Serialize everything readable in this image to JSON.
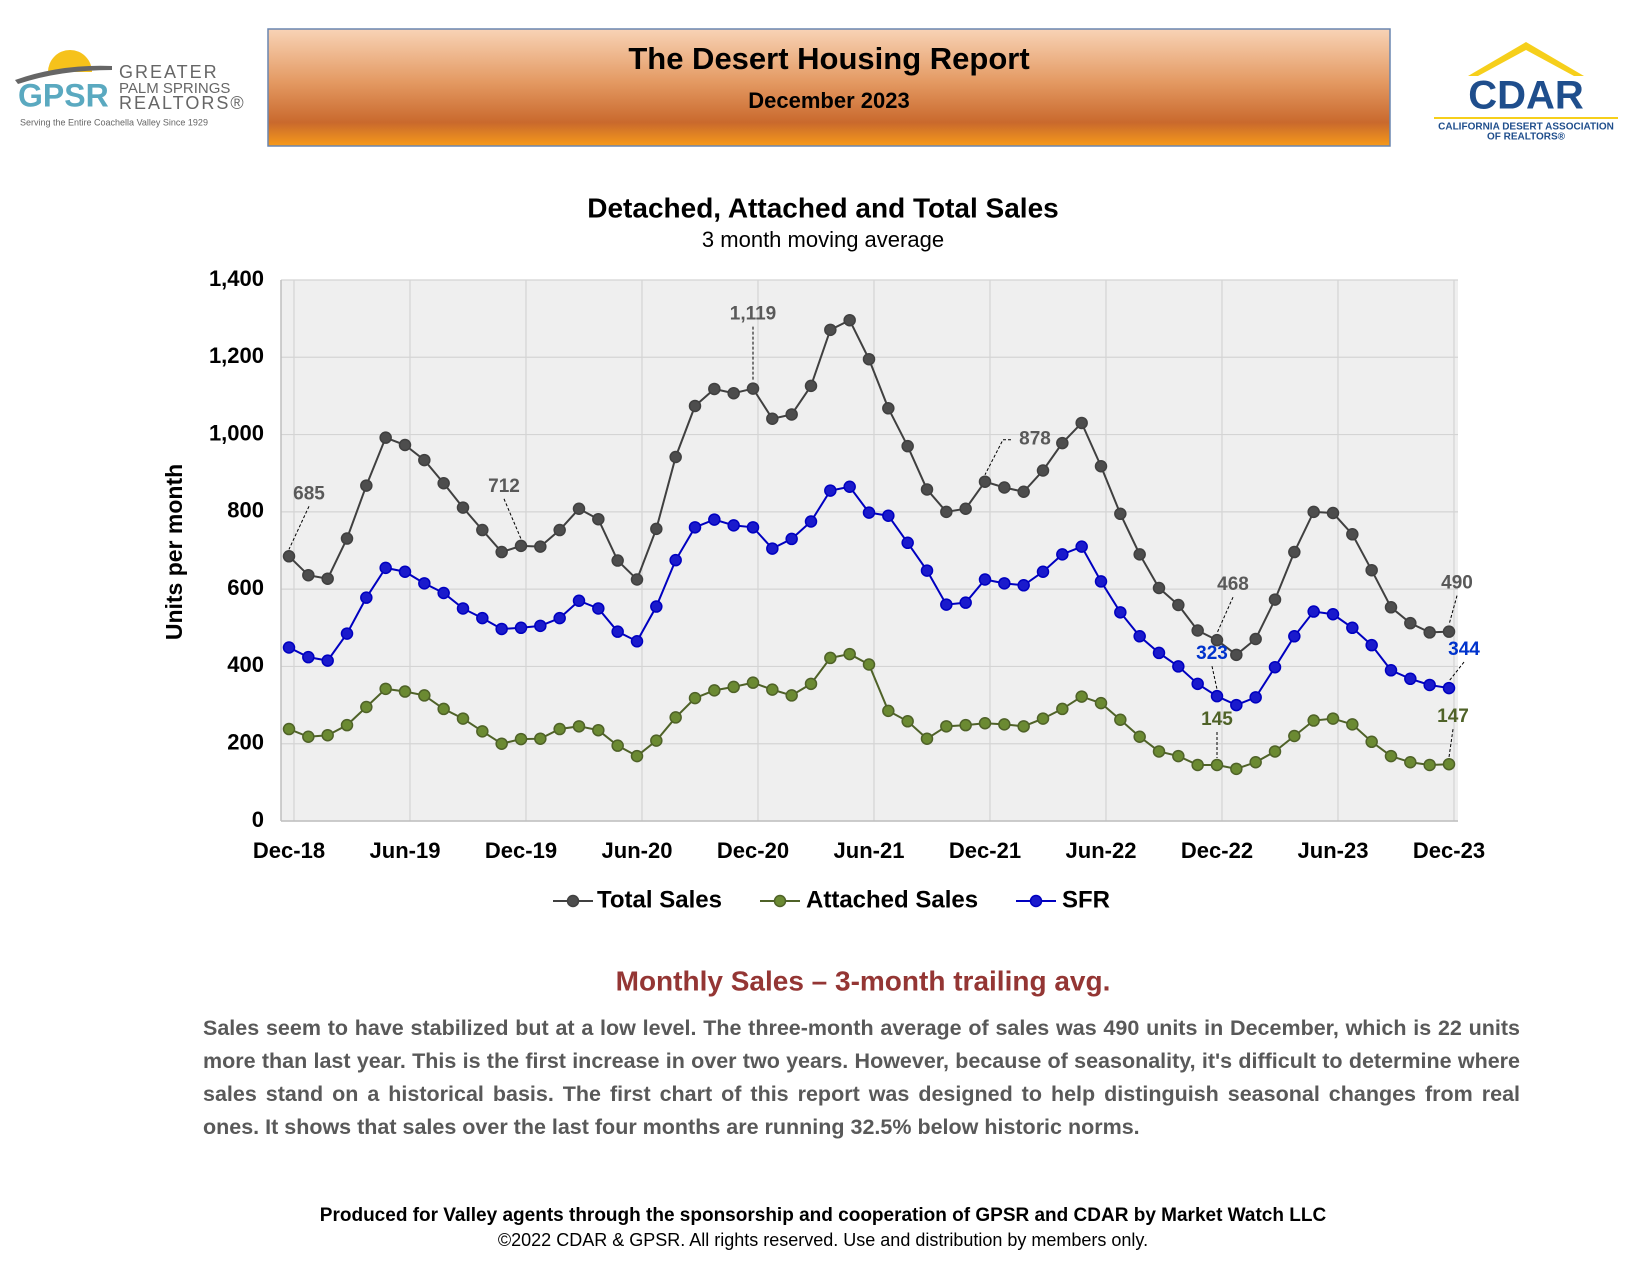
{
  "header": {
    "title": "The Desert Housing Report",
    "subtitle": "December 2023"
  },
  "logo_left": {
    "mark": "GPSR",
    "line1": "GREATER",
    "line2": "PALM SPRINGS",
    "line3": "REALTORS®",
    "tagline": "Serving the Entire Coachella Valley Since 1929"
  },
  "logo_right": {
    "mark": "CDAR",
    "line1": "CALIFORNIA DESERT ASSOCIATION",
    "line2": "OF REALTORS®"
  },
  "chart_data": {
    "type": "line",
    "title": "Detached, Attached and Total Sales",
    "subtitle": "3 month moving average",
    "y_label": "Units per month",
    "categories": [
      "Dec-18",
      null,
      null,
      null,
      null,
      null,
      "Jun-19",
      null,
      null,
      null,
      null,
      null,
      "Dec-19",
      null,
      null,
      null,
      null,
      null,
      "Jun-20",
      null,
      null,
      null,
      null,
      null,
      "Dec-20",
      null,
      null,
      null,
      null,
      null,
      "Jun-21",
      null,
      null,
      null,
      null,
      null,
      "Dec-21",
      null,
      null,
      null,
      null,
      null,
      "Jun-22",
      null,
      null,
      null,
      null,
      null,
      "Dec-22",
      null,
      null,
      null,
      null,
      null,
      "Jun-23",
      null,
      null,
      null,
      null,
      null,
      "Dec-23"
    ],
    "ylim": [
      0,
      1400
    ],
    "yticks": [
      0,
      200,
      400,
      600,
      800,
      {
        "value": 1000,
        "label": "1,000"
      },
      {
        "value": 1200,
        "label": "1,200"
      },
      {
        "value": 1400,
        "label": "1,400"
      }
    ],
    "grid": true,
    "series": [
      {
        "name": "Total Sales",
        "color": "#404040",
        "label_color": "#595959",
        "values": [
          685,
          636,
          627,
          731,
          868,
          992,
          973,
          934,
          874,
          811,
          753,
          696,
          712,
          710,
          753,
          808,
          781,
          674,
          625,
          756,
          942,
          1074,
          1118,
          1107,
          1119,
          1041,
          1052,
          1126,
          1271,
          1296,
          1195,
          1068,
          970,
          858,
          800,
          808,
          878,
          863,
          852,
          907,
          978,
          1030,
          918,
          795,
          690,
          603,
          559,
          493,
          468,
          430,
          471,
          573,
          696,
          800,
          797,
          742,
          649,
          553,
          512,
          488,
          490
        ],
        "value_labels": [
          "685",
          null,
          null,
          null,
          null,
          null,
          null,
          null,
          null,
          null,
          null,
          null,
          "712",
          null,
          null,
          null,
          null,
          null,
          null,
          null,
          null,
          null,
          null,
          null,
          "1,119",
          null,
          null,
          null,
          null,
          null,
          null,
          null,
          null,
          null,
          null,
          null,
          "878",
          null,
          null,
          null,
          null,
          null,
          null,
          null,
          null,
          null,
          null,
          null,
          "468",
          null,
          null,
          null,
          null,
          null,
          null,
          null,
          null,
          null,
          null,
          null,
          "490"
        ]
      },
      {
        "name": "Attached Sales",
        "color": "#4f6228",
        "label_color": "#4f6228",
        "values": [
          238,
          218,
          222,
          248,
          295,
          342,
          335,
          325,
          290,
          265,
          232,
          200,
          212,
          213,
          238,
          245,
          235,
          195,
          168,
          208,
          268,
          318,
          338,
          347,
          358,
          340,
          325,
          355,
          422,
          432,
          405,
          285,
          258,
          213,
          245,
          248,
          253,
          250,
          245,
          265,
          290,
          322,
          305,
          262,
          218,
          180,
          168,
          145,
          145,
          135,
          152,
          180,
          220,
          260,
          265,
          250,
          205,
          168,
          152,
          145,
          147
        ],
        "value_labels": [
          null,
          null,
          null,
          null,
          null,
          null,
          null,
          null,
          null,
          null,
          null,
          null,
          null,
          null,
          null,
          null,
          null,
          null,
          null,
          null,
          null,
          null,
          null,
          null,
          null,
          null,
          null,
          null,
          null,
          null,
          null,
          null,
          null,
          null,
          null,
          null,
          null,
          null,
          null,
          null,
          null,
          null,
          null,
          null,
          null,
          null,
          null,
          null,
          "145",
          null,
          null,
          null,
          null,
          null,
          null,
          null,
          null,
          null,
          null,
          null,
          "147"
        ]
      },
      {
        "name": "SFR",
        "color": "#0000c0",
        "label_color": "#0033cc",
        "values": [
          449,
          424,
          415,
          485,
          578,
          655,
          645,
          615,
          590,
          550,
          525,
          497,
          500,
          505,
          525,
          570,
          550,
          490,
          465,
          555,
          675,
          760,
          780,
          765,
          760,
          705,
          730,
          775,
          855,
          865,
          798,
          790,
          720,
          648,
          560,
          565,
          625,
          615,
          610,
          645,
          690,
          710,
          620,
          540,
          478,
          435,
          400,
          355,
          323,
          300,
          320,
          398,
          478,
          542,
          535,
          500,
          455,
          390,
          368,
          352,
          344
        ],
        "value_labels": [
          null,
          null,
          null,
          null,
          null,
          null,
          null,
          null,
          null,
          null,
          null,
          null,
          null,
          null,
          null,
          null,
          null,
          null,
          null,
          null,
          null,
          null,
          null,
          null,
          null,
          null,
          null,
          null,
          null,
          null,
          null,
          null,
          null,
          null,
          null,
          null,
          null,
          null,
          null,
          null,
          null,
          null,
          null,
          null,
          null,
          null,
          null,
          null,
          "323",
          null,
          null,
          null,
          null,
          null,
          null,
          null,
          null,
          null,
          null,
          null,
          "344"
        ]
      }
    ]
  },
  "commentary": {
    "heading": "Monthly Sales – 3-month trailing avg.",
    "text": "Sales seem to have stabilized but at a low level. The three-month average of sales was 490 units in December, which is 22 units more than last year. This is the first increase in over two years. However, because of seasonality, it's difficult to determine where sales stand on a historical basis. The first chart of this report was designed to help distinguish seasonal changes from real ones. It shows that sales over the last four months are running 32.5% below historic norms."
  },
  "footer": {
    "line1": "Produced for Valley agents through the sponsorship and cooperation of GPSR and CDAR by Market Watch LLC",
    "line2": "©2022 CDAR & GPSR.  All rights reserved.  Use and distribution by members only."
  }
}
